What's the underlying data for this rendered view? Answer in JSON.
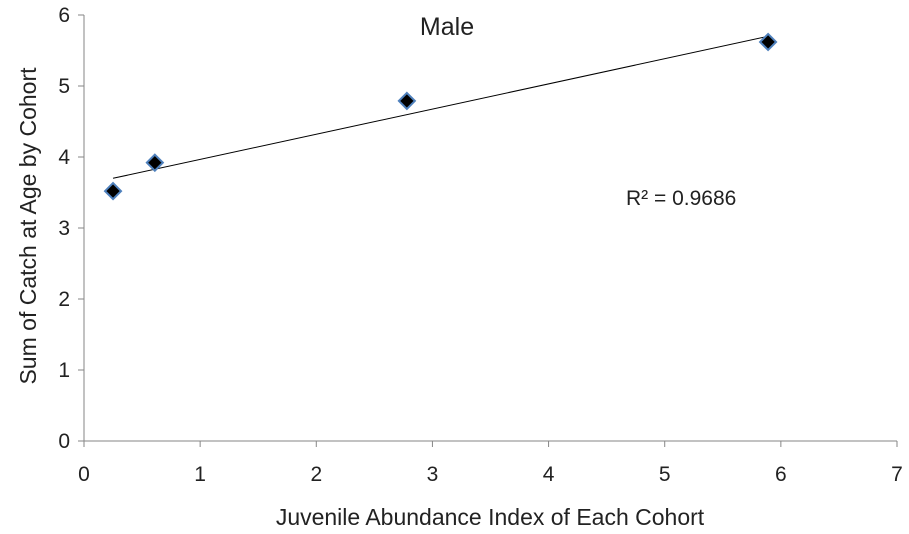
{
  "chart_data": {
    "type": "scatter",
    "title": "Male",
    "xlabel": "Juvenile Abundance  Index of Each Cohort",
    "ylabel": "Sum of Catch at Age by Cohort",
    "xlim": [
      0,
      7
    ],
    "ylim": [
      0,
      6
    ],
    "xticks": [
      "0",
      "1",
      "2",
      "3",
      "4",
      "5",
      "6",
      "7"
    ],
    "yticks": [
      "0",
      "1",
      "2",
      "3",
      "4",
      "5",
      "6"
    ],
    "grid": false,
    "legend": "none",
    "marker": "diamond",
    "marker_color": "#000000",
    "marker_edge_color": "#4f81bd",
    "trendline_color": "#000000",
    "points": [
      {
        "x": 0.25,
        "y": 3.52
      },
      {
        "x": 0.61,
        "y": 3.92
      },
      {
        "x": 2.78,
        "y": 4.79
      },
      {
        "x": 5.89,
        "y": 5.62
      }
    ],
    "trendline": {
      "type": "linear",
      "x": [
        0.25,
        5.89
      ],
      "y": [
        3.7,
        5.7
      ]
    },
    "annotation": "R² = 0.9686"
  }
}
